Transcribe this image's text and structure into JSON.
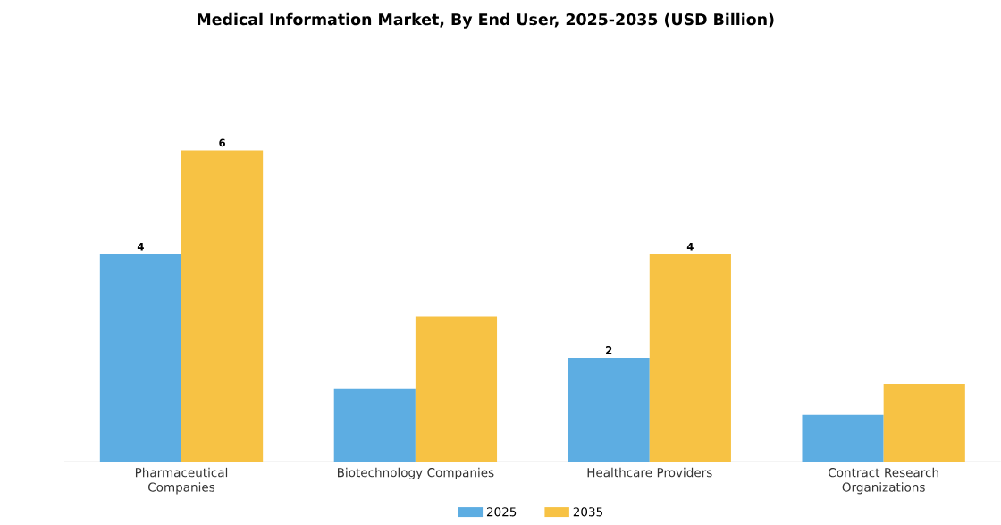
{
  "chart_data": {
    "type": "bar",
    "title": "Medical Information Market, By End User, 2025-2035 (USD Billion)",
    "categories": [
      "Pharmaceutical Companies",
      "Biotechnology Companies",
      "Healthcare Providers",
      "Contract Research Organizations"
    ],
    "series": [
      {
        "name": "2025",
        "color": "#5dade2",
        "values": [
          4,
          1.4,
          2,
          0.9
        ],
        "value_labels": [
          "4",
          null,
          "2",
          null
        ]
      },
      {
        "name": "2035",
        "color": "#f7c244",
        "values": [
          6,
          2.8,
          4,
          1.5
        ],
        "value_labels": [
          "6",
          null,
          "4",
          null
        ]
      }
    ],
    "legend": "bottom"
  }
}
